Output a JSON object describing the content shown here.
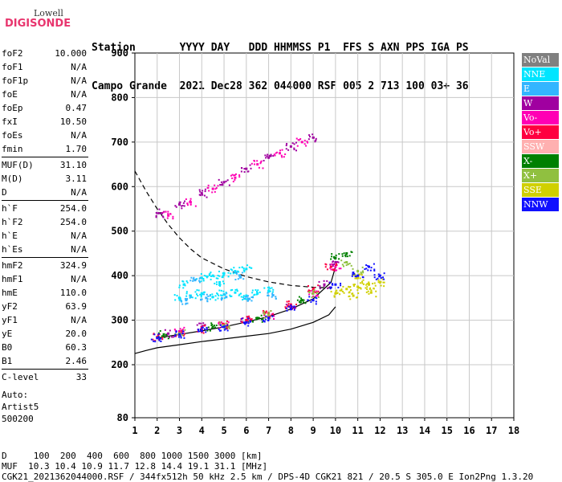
{
  "logo": {
    "line1": "Lowell",
    "line2": "DIGISONDE"
  },
  "header": {
    "row1": "Station       YYYY DAY   DDD HHMMSS P1  FFS S AXN PPS IGA PS",
    "row2": "Campo Grande  2021 Dec28 362 044000 RSF 005 2 713 100 03+ 36"
  },
  "params": [
    {
      "k": "foF2",
      "v": "10.000"
    },
    {
      "k": "foF1",
      "v": "N/A"
    },
    {
      "k": "foF1p",
      "v": "N/A"
    },
    {
      "k": "foE",
      "v": "N/A"
    },
    {
      "k": "foEp",
      "v": "0.47"
    },
    {
      "k": "fxI",
      "v": "10.50"
    },
    {
      "k": "foEs",
      "v": "N/A"
    },
    {
      "k": "fmin",
      "v": "1.70"
    },
    {
      "k": "MUF(D)",
      "v": "31.10"
    },
    {
      "k": "M(D)",
      "v": "3.11"
    },
    {
      "k": "D",
      "v": "N/A"
    },
    {
      "k": "h`F",
      "v": "254.0"
    },
    {
      "k": "h`F2",
      "v": "254.0"
    },
    {
      "k": "h`E",
      "v": "N/A"
    },
    {
      "k": "h`Es",
      "v": "N/A"
    },
    {
      "k": "hmF2",
      "v": "324.9"
    },
    {
      "k": "hmF1",
      "v": "N/A"
    },
    {
      "k": "hmE",
      "v": "110.0"
    },
    {
      "k": "yF2",
      "v": "63.9"
    },
    {
      "k": "yF1",
      "v": "N/A"
    },
    {
      "k": "yE",
      "v": "20.0"
    },
    {
      "k": "B0",
      "v": "60.3"
    },
    {
      "k": "B1",
      "v": "2.46"
    },
    {
      "k": "C-level",
      "v": "33"
    }
  ],
  "auto": {
    "l1": "Auto:",
    "l2": "Artist5",
    "l3": "500200"
  },
  "legend": [
    {
      "label": "NoVal",
      "color": "#808080"
    },
    {
      "label": "NNE",
      "color": "#00e5ff"
    },
    {
      "label": "E",
      "color": "#33b5ff"
    },
    {
      "label": "W",
      "color": "#a000a0"
    },
    {
      "label": "Vo-",
      "color": "#ff00b4"
    },
    {
      "label": "Vo+",
      "color": "#ff0040"
    },
    {
      "label": "SSW",
      "color": "#ffb0b0"
    },
    {
      "label": "X-",
      "color": "#008000"
    },
    {
      "label": "X+",
      "color": "#90c040"
    },
    {
      "label": "SSE",
      "color": "#d0d000"
    },
    {
      "label": "NNW",
      "color": "#1010ff"
    }
  ],
  "footer": {
    "l1": "D     100  200  400  600  800 1000 1500 3000 [km]",
    "l2": "MUF  10.3 10.4 10.9 11.7 12.8 14.4 19.1 31.1 [MHz]",
    "l3": "CGK21_2021362044000.RSF / 344fx512h 50 kHz 2.5 km / DPS-4D CGK21 821 / 20.5 S 305.0 E Ion2Png 1.3.20"
  },
  "chart_data": {
    "type": "scatter",
    "xlim": [
      1,
      18
    ],
    "ylim": [
      80,
      900
    ],
    "x_ticks": [
      1,
      2,
      3,
      4,
      5,
      6,
      7,
      8,
      9,
      10,
      11,
      12,
      13,
      14,
      15,
      16,
      17,
      18
    ],
    "y_ticks": [
      80,
      200,
      300,
      400,
      500,
      600,
      700,
      800,
      900
    ],
    "grid": true,
    "series": [
      {
        "name": "NNE",
        "color": "#00e5ff",
        "points": [
          [
            3,
            350
          ],
          [
            3.5,
            355
          ],
          [
            4,
            360
          ],
          [
            4.5,
            352
          ],
          [
            5,
            358
          ],
          [
            5.5,
            362
          ],
          [
            6,
            355
          ],
          [
            6.5,
            360
          ],
          [
            7,
            365
          ],
          [
            4,
            395
          ],
          [
            4.5,
            400
          ],
          [
            5,
            405
          ],
          [
            5.5,
            410
          ],
          [
            6,
            415
          ],
          [
            3.2,
            380
          ],
          [
            4.8,
            385
          ]
        ]
      },
      {
        "name": "E",
        "color": "#33b5ff",
        "points": [
          [
            3.3,
            345
          ],
          [
            4.2,
            350
          ],
          [
            5.1,
            352
          ],
          [
            6.1,
            348
          ],
          [
            7.2,
            356
          ],
          [
            3.7,
            390
          ],
          [
            5.7,
            400
          ]
        ]
      },
      {
        "name": "W",
        "color": "#a000a0",
        "points": [
          [
            2.2,
            540
          ],
          [
            3,
            560
          ],
          [
            4,
            585
          ],
          [
            5,
            610
          ],
          [
            6,
            640
          ],
          [
            7,
            665
          ],
          [
            8,
            690
          ],
          [
            9,
            710
          ],
          [
            2.5,
            270
          ],
          [
            4,
            285
          ],
          [
            6,
            300
          ],
          [
            8,
            330
          ],
          [
            9.5,
            380
          ],
          [
            10,
            430
          ]
        ]
      },
      {
        "name": "Vo-",
        "color": "#ff00b4",
        "points": [
          [
            2.5,
            535
          ],
          [
            3.5,
            565
          ],
          [
            4.5,
            595
          ],
          [
            5.5,
            620
          ],
          [
            6.5,
            650
          ],
          [
            7.5,
            675
          ],
          [
            8.5,
            700
          ],
          [
            3,
            275
          ],
          [
            5,
            290
          ],
          [
            7,
            310
          ],
          [
            9,
            360
          ],
          [
            10,
            420
          ]
        ]
      },
      {
        "name": "Vo+",
        "color": "#ff0040",
        "points": [
          [
            2,
            262
          ],
          [
            3,
            272
          ],
          [
            4,
            280
          ],
          [
            5,
            290
          ],
          [
            6,
            300
          ],
          [
            7,
            315
          ],
          [
            8,
            335
          ],
          [
            9,
            370
          ],
          [
            9.8,
            420
          ]
        ]
      },
      {
        "name": "X-",
        "color": "#008000",
        "points": [
          [
            2.3,
            268
          ],
          [
            4.5,
            285
          ],
          [
            6.5,
            305
          ],
          [
            8.5,
            345
          ],
          [
            10,
            440
          ],
          [
            10.5,
            450
          ]
        ]
      },
      {
        "name": "X+",
        "color": "#90c040",
        "points": [
          [
            3,
            270
          ],
          [
            5,
            288
          ],
          [
            7,
            312
          ],
          [
            9,
            360
          ],
          [
            10.5,
            430
          ],
          [
            11,
            410
          ]
        ]
      },
      {
        "name": "SSE",
        "color": "#d0d000",
        "points": [
          [
            10,
            360
          ],
          [
            10.5,
            370
          ],
          [
            11,
            375
          ],
          [
            11.5,
            380
          ],
          [
            12,
            385
          ],
          [
            11,
            395
          ],
          [
            10.8,
            355
          ],
          [
            11.6,
            362
          ]
        ]
      },
      {
        "name": "NNW",
        "color": "#1010ff",
        "points": [
          [
            2,
            260
          ],
          [
            3,
            268
          ],
          [
            4,
            276
          ],
          [
            5,
            285
          ],
          [
            6,
            295
          ],
          [
            7,
            305
          ],
          [
            8,
            325
          ],
          [
            9,
            345
          ],
          [
            10,
            380
          ],
          [
            11,
            400
          ],
          [
            11.5,
            420
          ],
          [
            12,
            400
          ]
        ]
      }
    ],
    "curves": [
      {
        "kind": "dashed",
        "points": [
          [
            1,
            635
          ],
          [
            1.5,
            590
          ],
          [
            2,
            550
          ],
          [
            2.5,
            515
          ],
          [
            3,
            485
          ],
          [
            3.5,
            460
          ],
          [
            4,
            440
          ],
          [
            5,
            415
          ],
          [
            6,
            398
          ],
          [
            7,
            386
          ],
          [
            8,
            378
          ],
          [
            9,
            374
          ],
          [
            10,
            372
          ]
        ]
      },
      {
        "kind": "solid_trace",
        "points": [
          [
            2,
            260
          ],
          [
            3,
            268
          ],
          [
            4,
            276
          ],
          [
            5,
            285
          ],
          [
            6,
            296
          ],
          [
            7,
            308
          ],
          [
            8,
            325
          ],
          [
            9,
            348
          ],
          [
            9.8,
            385
          ],
          [
            10,
            420
          ]
        ]
      },
      {
        "kind": "solid_lower",
        "points": [
          [
            1,
            225
          ],
          [
            1.5,
            232
          ],
          [
            2,
            238
          ],
          [
            3,
            245
          ],
          [
            4,
            252
          ],
          [
            5,
            258
          ],
          [
            6,
            264
          ],
          [
            7,
            270
          ],
          [
            8,
            280
          ],
          [
            9,
            295
          ],
          [
            9.7,
            312
          ],
          [
            10,
            330
          ]
        ]
      }
    ]
  }
}
